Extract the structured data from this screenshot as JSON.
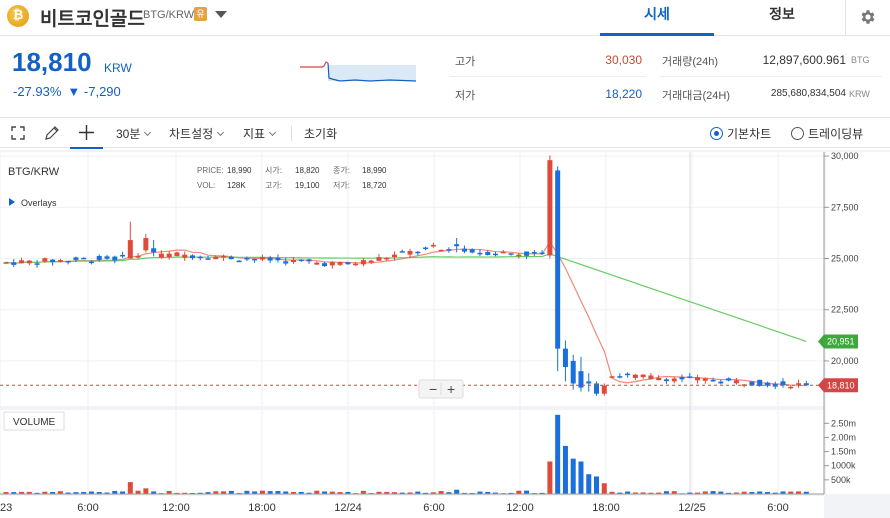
{
  "header": {
    "logo_glyph": "₿",
    "coin_name": "비트코인골드",
    "pair": "BTG/KRW",
    "warning_badge": "유",
    "tabs": [
      {
        "label": "시세",
        "active": true
      },
      {
        "label": "정보",
        "active": false
      }
    ]
  },
  "price": {
    "current": "18,810",
    "unit": "KRW",
    "change_rate": "-27.93%",
    "change_amount": "▼ -7,290"
  },
  "stats": {
    "high_label": "고가",
    "high_value": "30,030",
    "low_label": "저가",
    "low_value": "18,220",
    "volume_label": "거래량(24h)",
    "volume_value": "12,897,600.961",
    "volume_unit": "BTG",
    "amount_label": "거래대금(24H)",
    "amount_value": "285,680,834,504",
    "amount_unit": "KRW"
  },
  "toolbar": {
    "interval": "30분",
    "chart_settings": "차트설정",
    "indicators": "지표",
    "reset": "초기화",
    "basic_chart": "기본차트",
    "tradingview": "트레이딩뷰"
  },
  "colors": {
    "up": "#c84a31",
    "down": "#1261c4",
    "up_candle": "#e04a3a",
    "down_candle": "#1a6fdc",
    "ma_short": "#ef8a7a",
    "ma_long": "#66cc66"
  },
  "chart_overlay": {
    "pair": "BTG/KRW",
    "overlays_label": "Overlays",
    "price_label": "PRICE:",
    "price_value": "18,990",
    "open_label": "시가:",
    "open_value": "18,820",
    "close_label": "종가:",
    "close_value": "18,990",
    "vol_label": "VOL:",
    "vol_value": "128K",
    "high_label": "고가:",
    "high_value": "19,100",
    "low_label": "저가:",
    "low_value": "18,720",
    "volume_pane_label": "VOLUME",
    "zoom_out": "−",
    "zoom_in": "+",
    "ma_long_tag": "20,951",
    "last_price_tag": "18,810"
  },
  "chart_data": {
    "type": "candlestick",
    "interval": "30분",
    "y_ticks": [
      30000,
      27500,
      25000,
      22500,
      20000
    ],
    "y_tick_labels": [
      "30,000",
      "27,500",
      "25,000",
      "22,500",
      "20,000"
    ],
    "ylim": [
      17800,
      30200
    ],
    "volume_ticks": [
      "2.50m",
      "2.00m",
      "1.50m",
      "1000k",
      "500k"
    ],
    "volume_tick_values": [
      2500,
      2000,
      1500,
      1000,
      500
    ],
    "volume_max": 2900,
    "x_tick_labels": [
      "23",
      "6:00",
      "12:00",
      "18:00",
      "12/24",
      "6:00",
      "12:00",
      "18:00",
      "12/25",
      "6:00"
    ],
    "last_price": 18810,
    "ma_long_last": 20951,
    "highlights": [
      {
        "index": 70,
        "open": 25150,
        "high": 30030,
        "low": 25000,
        "close": 29800
      },
      {
        "index": 71,
        "open": 29300,
        "high": 29500,
        "low": 19500,
        "close": 20600
      },
      {
        "index": 72,
        "open": 20600,
        "high": 21000,
        "low": 19000,
        "close": 19700
      }
    ],
    "segments": [
      {
        "from": 0,
        "to": 16,
        "start": 24800,
        "end": 25050
      },
      {
        "from": 16,
        "to": 22,
        "start": 25050,
        "end": 25200
      },
      {
        "from": 22,
        "to": 44,
        "start": 25200,
        "end": 24700
      },
      {
        "from": 44,
        "to": 56,
        "start": 24700,
        "end": 25600
      },
      {
        "from": 56,
        "to": 69,
        "start": 25400,
        "end": 25200
      },
      {
        "from": 73,
        "to": 103,
        "start": 19400,
        "end": 18810
      }
    ]
  }
}
